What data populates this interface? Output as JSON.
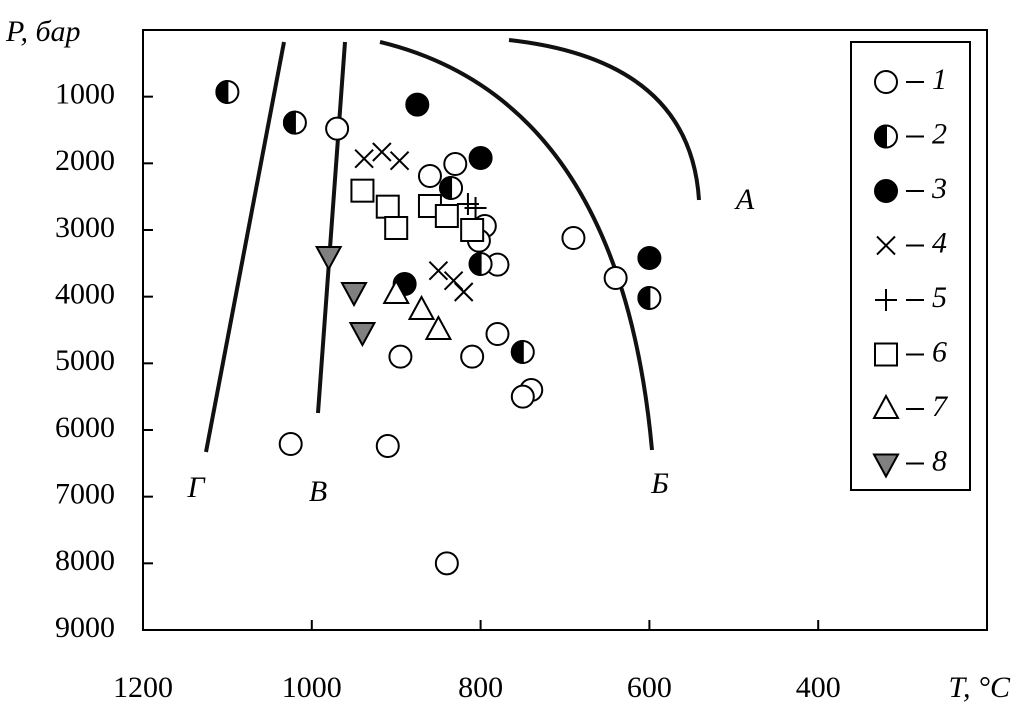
{
  "chart_data": {
    "type": "scatter",
    "x_label": "T, °C",
    "y_label": "P, бар",
    "xlim": [
      1200,
      200
    ],
    "ylim": [
      0,
      9000
    ],
    "xticks": [
      1200,
      1000,
      800,
      600,
      400
    ],
    "yticks": [
      1000,
      2000,
      3000,
      4000,
      5000,
      6000,
      7000,
      8000,
      9000
    ],
    "legend": "upper right",
    "annotations": [
      "А",
      "Б",
      "В",
      "Г"
    ],
    "series": [
      {
        "name": "1",
        "marker": "circle-open",
        "color": "#000000",
        "x": [
          970,
          860,
          830,
          795,
          802,
          780,
          690,
          640,
          780,
          810,
          895,
          740,
          750,
          1025,
          910,
          840
        ],
        "values": [
          1480,
          2190,
          2010,
          2940,
          3160,
          3520,
          3120,
          3720,
          4560,
          4900,
          4900,
          5400,
          5500,
          6210,
          6240,
          8000
        ]
      },
      {
        "name": "2",
        "marker": "circle-half",
        "color": "#000000",
        "x": [
          1100,
          1020,
          835,
          800,
          750,
          600
        ],
        "values": [
          930,
          1390,
          2370,
          3510,
          4830,
          4020
        ]
      },
      {
        "name": "3",
        "marker": "circle-filled",
        "color": "#000000",
        "x": [
          875,
          800,
          890,
          600
        ],
        "values": [
          1120,
          1920,
          3810,
          3420
        ]
      },
      {
        "name": "4",
        "marker": "x",
        "color": "#000000",
        "x": [
          938,
          917,
          896,
          850,
          832,
          820
        ],
        "values": [
          1930,
          1830,
          1960,
          3610,
          3760,
          3930
        ]
      },
      {
        "name": "5",
        "marker": "plus",
        "color": "#000000",
        "x": [
          815,
          806
        ],
        "values": [
          2610,
          2670
        ]
      },
      {
        "name": "6",
        "marker": "square-open",
        "color": "#000000",
        "x": [
          940,
          910,
          900,
          860,
          840,
          810
        ],
        "values": [
          2410,
          2650,
          2970,
          2640,
          2790,
          3000
        ]
      },
      {
        "name": "7",
        "marker": "triangle-up-open",
        "color": "#000000",
        "x": [
          900,
          870,
          850
        ],
        "values": [
          3960,
          4200,
          4500
        ]
      },
      {
        "name": "8",
        "marker": "triangle-down-filled",
        "color": "#808080",
        "x": [
          980,
          950,
          940
        ],
        "values": [
          3390,
          3930,
          4530
        ]
      }
    ]
  }
}
